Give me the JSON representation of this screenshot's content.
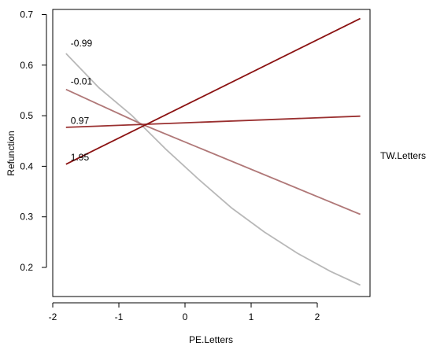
{
  "chart_data": {
    "type": "line",
    "title": "",
    "xlabel": "PE.Letters",
    "ylabel": "Refunction",
    "legend_title": "TW.Letters",
    "legend_position": "right",
    "xlim": [
      -2.0,
      2.75
    ],
    "ylim": [
      0.15,
      0.72
    ],
    "xticks": [
      -2,
      -1,
      0,
      1,
      2
    ],
    "yticks": [
      0.2,
      0.3,
      0.4,
      0.5,
      0.6,
      0.7
    ],
    "xtick_labels": [
      "-2",
      "-1",
      "0",
      "1",
      "2"
    ],
    "ytick_labels": [
      "0.2",
      "0.3",
      "0.4",
      "0.5",
      "0.6",
      "0.7"
    ],
    "grid": false,
    "series": [
      {
        "name": "-0.99",
        "color": "#b8b8b8",
        "x": [
          -1.8,
          -1.3,
          -0.8,
          -0.3,
          0.2,
          0.7,
          1.2,
          1.7,
          2.2,
          2.65
        ],
        "values": [
          0.623,
          0.555,
          0.5,
          0.435,
          0.375,
          0.318,
          0.27,
          0.228,
          0.192,
          0.165
        ]
      },
      {
        "name": "-0.01",
        "color": "#b07878",
        "x": [
          -1.8,
          -0.65,
          2.65
        ],
        "values": [
          0.552,
          0.483,
          0.305
        ]
      },
      {
        "name": "0.97",
        "color": "#9a3030",
        "x": [
          -1.8,
          2.65
        ],
        "values": [
          0.477,
          0.499
        ]
      },
      {
        "name": "1.95",
        "color": "#8b1212",
        "x": [
          -1.8,
          2.65
        ],
        "values": [
          0.404,
          0.692
        ]
      }
    ],
    "line_labels": [
      {
        "text": "-0.99",
        "x": -1.8,
        "y": 0.643
      },
      {
        "text": "-0.01",
        "x": -1.8,
        "y": 0.568
      },
      {
        "text": "0.97",
        "x": -1.8,
        "y": 0.49
      },
      {
        "text": "1.95",
        "x": -1.8,
        "y": 0.418
      }
    ]
  }
}
